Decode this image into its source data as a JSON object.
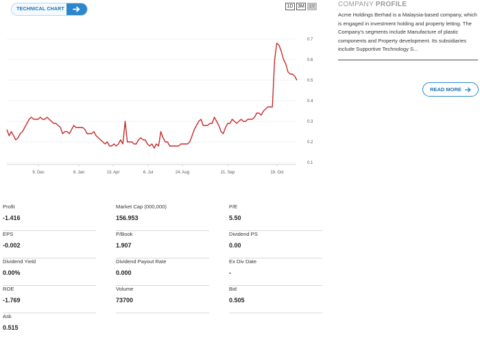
{
  "toolbar": {
    "technical_chart_label": "TECHNICAL CHART",
    "ranges": [
      "1D",
      "3M",
      "1Y"
    ],
    "active_range": "1Y"
  },
  "colors": {
    "accent": "#2b86cb",
    "line": "#c62828"
  },
  "chart_data": {
    "type": "line",
    "x_tick_labels": [
      "9. Dec",
      "6. Jan",
      "13. Apr",
      "6. Jul",
      "24. Aug",
      "21. Sep",
      "19. Oct"
    ],
    "y_tick_labels": [
      "0.1",
      "0.2",
      "0.3",
      "0.4",
      "0.5",
      "0.6",
      "0.7"
    ],
    "ylim": [
      0.1,
      0.7
    ],
    "grid": true,
    "y_axis_position": "right",
    "series": [
      {
        "values": [
          0.26,
          0.23,
          0.25,
          0.23,
          0.21,
          0.22,
          0.24,
          0.25,
          0.27,
          0.29,
          0.31,
          0.32,
          0.31,
          0.31,
          0.31,
          0.32,
          0.31,
          0.31,
          0.32,
          0.31,
          0.3,
          0.29,
          0.29,
          0.28,
          0.27,
          0.24,
          0.25,
          0.25,
          0.24,
          0.26,
          0.28,
          0.27,
          0.27,
          0.27,
          0.27,
          0.26,
          0.24,
          0.24,
          0.24,
          0.25,
          0.23,
          0.22,
          0.21,
          0.2,
          0.19,
          0.2,
          0.18,
          0.18,
          0.19,
          0.18,
          0.19,
          0.21,
          0.19,
          0.3,
          0.2,
          0.2,
          0.2,
          0.19,
          0.19,
          0.21,
          0.22,
          0.21,
          0.21,
          0.19,
          0.18,
          0.19,
          0.17,
          0.19,
          0.18,
          0.25,
          0.22,
          0.2,
          0.2,
          0.18,
          0.18,
          0.18,
          0.18,
          0.18,
          0.19,
          0.19,
          0.19,
          0.19,
          0.2,
          0.23,
          0.26,
          0.28,
          0.3,
          0.31,
          0.28,
          0.28,
          0.28,
          0.29,
          0.29,
          0.32,
          0.3,
          0.28,
          0.25,
          0.24,
          0.27,
          0.29,
          0.29,
          0.31,
          0.3,
          0.29,
          0.3,
          0.31,
          0.3,
          0.3,
          0.31,
          0.31,
          0.31,
          0.32,
          0.34,
          0.34,
          0.33,
          0.35,
          0.36,
          0.37,
          0.37,
          0.37,
          0.6,
          0.68,
          0.67,
          0.64,
          0.6,
          0.58,
          0.54,
          0.53,
          0.53,
          0.52,
          0.5
        ]
      }
    ]
  },
  "profile": {
    "header_light": "COMPANY",
    "header_bold": "PROFILE",
    "description": "Acme Holdings Berhad is a Malaysia-based company, which is engaged in investment holding and property letting. The Company's segments include Manufacture of plastic components and Property development. Its subsidiaries include Supportive Technology S...",
    "read_more_label": "READ MORE"
  },
  "stats": [
    {
      "label": "Profit",
      "value": "-1.416"
    },
    {
      "label": "Market Cap   (000,000)",
      "value": "156.953"
    },
    {
      "label": "P/E",
      "value": "5.50"
    },
    {
      "label": "EPS",
      "value": "-0.002"
    },
    {
      "label": "P/Book",
      "value": "1.907"
    },
    {
      "label": "Dividend PS",
      "value": "0.00"
    },
    {
      "label": "Dividend Yield",
      "value": "0.00%"
    },
    {
      "label": "Dividend Payout Rate",
      "value": "0.000"
    },
    {
      "label": "Ex Div Date",
      "value": "-"
    },
    {
      "label": "ROE",
      "value": "-1.769"
    },
    {
      "label": "Volume",
      "value": "73700"
    },
    {
      "label": "Bid",
      "value": "0.505"
    },
    {
      "label": "Ask",
      "value": "0.515"
    }
  ]
}
